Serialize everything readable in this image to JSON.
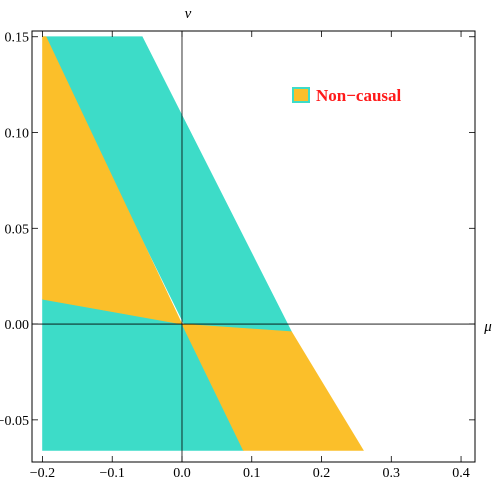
{
  "chart_data": {
    "type": "area",
    "title": "",
    "xlabel": "μ",
    "ylabel": "ν",
    "xlim": [
      -0.215,
      0.42
    ],
    "ylim": [
      -0.072,
      0.153
    ],
    "x_ticks": [
      -0.2,
      -0.1,
      0.0,
      0.1,
      0.2,
      0.3,
      0.4
    ],
    "x_tick_labels": [
      "−0.2",
      "−0.1",
      "0.0",
      "0.1",
      "0.2",
      "0.3",
      "0.4"
    ],
    "y_ticks": [
      -0.05,
      0.0,
      0.05,
      0.1,
      0.15
    ],
    "y_tick_labels": [
      "−0.05",
      "0.00",
      "0.05",
      "0.10",
      "0.15"
    ],
    "grid": false,
    "legend_position": "top-right",
    "legend": [
      {
        "label": "Non−causal",
        "color": "#fbbf2a",
        "border": "#3ddcc8",
        "text_color": "#ff1a1a"
      }
    ],
    "series": [
      {
        "color": "#3ddcc8",
        "polygons": [
          [
            [
              -0.2,
              0.15
            ],
            [
              -0.057,
              0.15
            ],
            [
              0.157,
              -0.004
            ],
            [
              0.003,
              0.0
            ],
            [
              -0.2,
              0.15
            ]
          ],
          [
            [
              -0.2,
              0.013
            ],
            [
              0.0,
              0.0
            ],
            [
              0.088,
              -0.066
            ],
            [
              -0.2,
              -0.066
            ]
          ]
        ]
      },
      {
        "name": "Non−causal",
        "color": "#fbbf2a",
        "polygons": [
          [
            [
              -0.2,
              0.15
            ],
            [
              -0.195,
              0.15
            ],
            [
              0.0,
              0.0
            ],
            [
              -0.2,
              0.013
            ]
          ],
          [
            [
              0.0,
              0.0
            ],
            [
              0.157,
              -0.004
            ],
            [
              0.26,
              -0.066
            ],
            [
              0.088,
              -0.066
            ]
          ]
        ]
      }
    ]
  }
}
